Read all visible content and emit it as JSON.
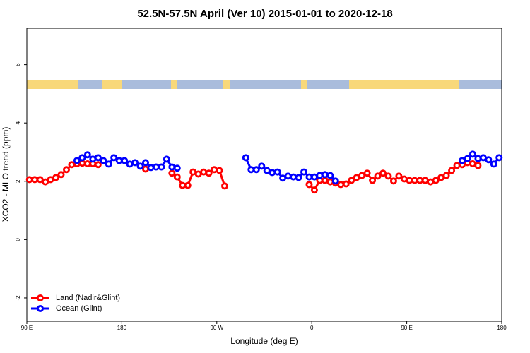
{
  "chart_data": {
    "type": "line",
    "title": "52.5N-57.5N April (Ver 10)   2015-01-01 to 2020-12-18",
    "xlabel": "Longitude (deg E)",
    "ylabel": "XCO2 - MLO trend (ppm)",
    "xlim": [
      90,
      540
    ],
    "ylim": [
      -2.8,
      7.25
    ],
    "xticks": [
      {
        "value": 90,
        "label": "90 E"
      },
      180,
      {
        "value": 270,
        "label": "90 W"
      },
      {
        "value": 360,
        "label": "0"
      },
      {
        "value": 450,
        "label": "90 E"
      },
      {
        "value": 540,
        "label": "180"
      }
    ],
    "yticks": [
      -2,
      0,
      2,
      4,
      6
    ],
    "legend": "bottom-left",
    "x": [
      92.5,
      97.5,
      102.5,
      107.5,
      112.5,
      117.5,
      122.5,
      127.5,
      132.5,
      137.5,
      142.5,
      147.5,
      152.5,
      157.5,
      162.5,
      167.5,
      172.5,
      177.5,
      182.5,
      187.5,
      192.5,
      197.5,
      202.5,
      207.5,
      212.5,
      217.5,
      222.5,
      227.5,
      232.5,
      237.5,
      242.5,
      247.5,
      252.5,
      257.5,
      262.5,
      267.5,
      272.5,
      277.5,
      282.5,
      287.5,
      292.5,
      297.5,
      302.5,
      307.5,
      312.5,
      317.5,
      322.5,
      327.5,
      332.5,
      337.5,
      342.5,
      347.5,
      352.5,
      357.5,
      362.5,
      367.5,
      372.5,
      377.5,
      382.5,
      387.5,
      392.5,
      397.5,
      402.5,
      407.5,
      412.5,
      417.5,
      422.5,
      427.5,
      432.5,
      437.5,
      442.5,
      447.5,
      452.5,
      457.5,
      462.5,
      467.5,
      472.5,
      477.5,
      482.5,
      487.5,
      492.5,
      497.5,
      502.5,
      507.5,
      512.5,
      517.5,
      522.5,
      527.5,
      532.5,
      537.5
    ],
    "series": [
      {
        "name": "Land (Nadir&Glint)",
        "color": "#ff0000",
        "values": [
          2.06,
          2.06,
          2.06,
          1.98,
          2.06,
          2.13,
          2.23,
          2.4,
          2.57,
          2.6,
          2.62,
          2.6,
          2.6,
          2.57,
          null,
          null,
          null,
          null,
          null,
          null,
          null,
          null,
          2.42,
          null,
          null,
          null,
          null,
          2.28,
          2.15,
          1.86,
          1.86,
          2.32,
          2.25,
          2.32,
          2.28,
          2.4,
          2.37,
          1.84,
          null,
          null,
          null,
          null,
          null,
          null,
          null,
          null,
          null,
          null,
          null,
          null,
          null,
          null,
          null,
          1.89,
          1.7,
          2.03,
          2.03,
          1.98,
          1.94,
          1.89,
          1.91,
          2.03,
          2.13,
          2.2,
          2.28,
          2.03,
          2.18,
          2.28,
          2.18,
          2.01,
          2.18,
          2.08,
          2.03,
          2.03,
          2.03,
          2.03,
          1.98,
          2.03,
          2.13,
          2.2,
          2.37,
          2.54,
          2.57,
          2.64,
          2.6,
          2.54,
          null,
          null,
          null,
          null
        ]
      },
      {
        "name": "Ocean (Glint)",
        "color": "#0000ff",
        "values": [
          null,
          null,
          null,
          null,
          null,
          null,
          null,
          null,
          null,
          2.71,
          2.81,
          2.91,
          2.76,
          2.81,
          2.71,
          2.59,
          2.81,
          2.71,
          2.71,
          2.59,
          2.64,
          2.52,
          2.64,
          2.47,
          2.49,
          2.49,
          2.76,
          2.49,
          2.45,
          null,
          null,
          null,
          null,
          null,
          null,
          null,
          null,
          null,
          null,
          null,
          null,
          2.81,
          2.4,
          2.4,
          2.52,
          2.37,
          2.3,
          2.32,
          2.11,
          2.18,
          2.15,
          2.13,
          2.32,
          2.15,
          2.15,
          2.2,
          2.23,
          2.2,
          2.01,
          null,
          null,
          null,
          null,
          null,
          null,
          null,
          null,
          null,
          null,
          null,
          null,
          null,
          null,
          null,
          null,
          null,
          null,
          null,
          null,
          null,
          null,
          null,
          2.71,
          2.78,
          2.93,
          2.78,
          2.81,
          2.74,
          2.59,
          2.81
        ]
      }
    ]
  }
}
